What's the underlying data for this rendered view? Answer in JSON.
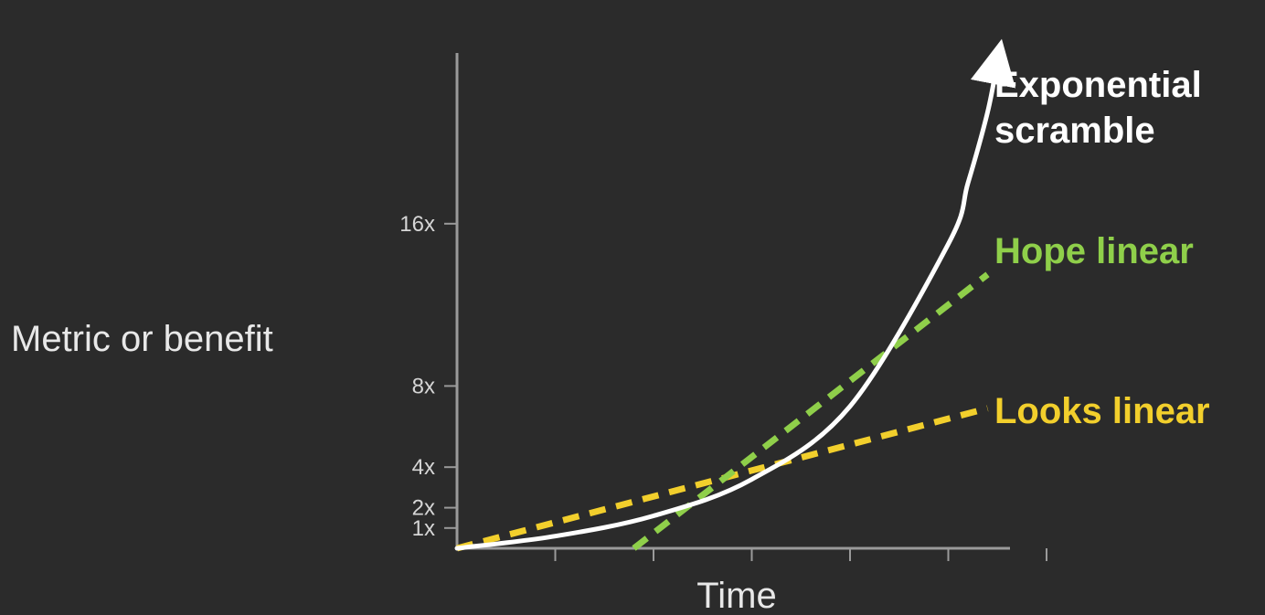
{
  "chart_data": {
    "type": "line",
    "title": "",
    "xlabel": "Time",
    "ylabel": "Metric or benefit",
    "yticks": [
      {
        "value": 1,
        "label": "1x"
      },
      {
        "value": 2,
        "label": "2x"
      },
      {
        "value": 4,
        "label": "4x"
      },
      {
        "value": 8,
        "label": "8x"
      },
      {
        "value": 16,
        "label": "16x"
      }
    ],
    "xticks": [
      1,
      2,
      3,
      4,
      5,
      6
    ],
    "xlim": [
      0,
      6
    ],
    "ylim": [
      0,
      24
    ],
    "grid": false,
    "series": [
      {
        "name": "Exponential scramble",
        "style": "solid",
        "color": "#ffffff",
        "arrow": true,
        "points": [
          [
            0,
            0
          ],
          [
            1,
            0.6
          ],
          [
            2,
            1.6
          ],
          [
            3,
            3.4
          ],
          [
            4,
            7
          ],
          [
            5,
            15
          ],
          [
            5.2,
            18
          ],
          [
            5.4,
            21.5
          ],
          [
            5.5,
            24
          ]
        ]
      },
      {
        "name": "Hope linear",
        "style": "dashed",
        "color": "#8fcf4a",
        "points": [
          [
            1.8,
            0
          ],
          [
            5.4,
            13.5
          ]
        ]
      },
      {
        "name": "Looks linear",
        "style": "dashed",
        "color": "#f2cf2c",
        "points": [
          [
            0,
            0
          ],
          [
            5.4,
            6.9
          ]
        ]
      }
    ],
    "labels": [
      {
        "series": "Exponential scramble",
        "lines": [
          "Exponential",
          "scramble"
        ]
      },
      {
        "series": "Hope linear",
        "lines": [
          "Hope linear"
        ]
      },
      {
        "series": "Looks linear",
        "lines": [
          "Looks linear"
        ]
      }
    ]
  }
}
